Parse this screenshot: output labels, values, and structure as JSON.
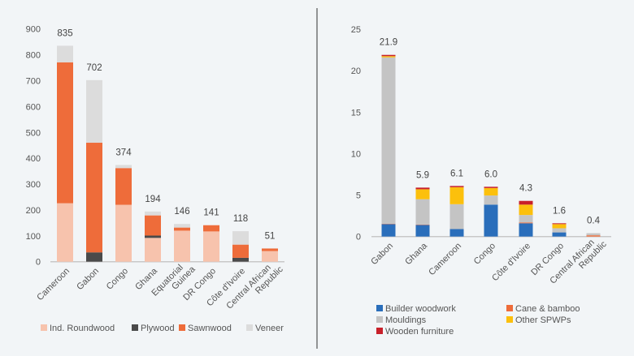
{
  "chart_data": [
    {
      "type": "bar",
      "stacked": true,
      "categories": [
        "Cameroon",
        "Gabon",
        "Congo",
        "Ghana",
        "Equatorial Guinea",
        "DR Congo",
        "Côte d'Ivoire",
        "Central African Republic"
      ],
      "category_lines": [
        [
          "Cameroon"
        ],
        [
          "Gabon"
        ],
        [
          "Congo"
        ],
        [
          "Ghana"
        ],
        [
          "Equatorial",
          "Guinea"
        ],
        [
          "DR Congo"
        ],
        [
          "Côte d'Ivoire"
        ],
        [
          "Central African",
          "Republic"
        ]
      ],
      "series": [
        {
          "name": "Ind. Roundwood",
          "color": "#f7c3ad",
          "values": [
            226,
            0,
            220,
            92,
            120,
            117,
            0,
            41
          ]
        },
        {
          "name": "Plywood",
          "color": "#4a4a4a",
          "values": [
            0,
            36,
            0,
            9,
            0,
            0,
            15,
            0
          ]
        },
        {
          "name": "Sawnwood",
          "color": "#ee6c3a",
          "values": [
            545,
            424,
            142,
            78,
            12,
            24,
            51,
            10
          ]
        },
        {
          "name": "Veneer",
          "color": "#dcdcdc",
          "values": [
            64,
            242,
            12,
            15,
            14,
            0,
            52,
            0
          ]
        }
      ],
      "totals": [
        "835",
        "702",
        "374",
        "194",
        "146",
        "141",
        "118",
        "51"
      ],
      "yticks": [
        "0",
        "100",
        "200",
        "300",
        "400",
        "500",
        "600",
        "700",
        "800",
        "900"
      ],
      "ylim": [
        0,
        900
      ],
      "grid": false,
      "legend": "bottom"
    },
    {
      "type": "bar",
      "stacked": true,
      "categories": [
        "Gabon",
        "Ghana",
        "Cameroon",
        "Congo",
        "Côte d'Ivoire",
        "DR Congo",
        "Central African Republic"
      ],
      "category_lines": [
        [
          "Gabon"
        ],
        [
          "Ghana"
        ],
        [
          "Cameroon"
        ],
        [
          "Congo"
        ],
        [
          "Côte d'Ivoire"
        ],
        [
          "DR Congo"
        ],
        [
          "Central African",
          "Republic"
        ]
      ],
      "series": [
        {
          "name": "Builder woodwork",
          "color": "#2a6ebb",
          "values": [
            1.5,
            1.4,
            0.9,
            3.85,
            1.6,
            0.5,
            0
          ]
        },
        {
          "name": "Cane & bamboo",
          "color": "#ee6c3a",
          "values": [
            0.05,
            0.05,
            0,
            0,
            0.1,
            0,
            0.15
          ]
        },
        {
          "name": "Mouldings",
          "color": "#c4c4c4",
          "values": [
            20.05,
            3.05,
            3.0,
            1.1,
            0.9,
            0.5,
            0.25
          ]
        },
        {
          "name": "Other SPWPs",
          "color": "#fcc00c",
          "values": [
            0.15,
            1.2,
            2.05,
            0.9,
            1.25,
            0.5,
            0
          ]
        },
        {
          "name": "Wooden furniture",
          "color": "#c8202a",
          "values": [
            0.15,
            0.2,
            0.15,
            0.15,
            0.45,
            0.1,
            0
          ]
        }
      ],
      "totals": [
        "21.9",
        "5.9",
        "6.1",
        "6.0",
        "4.3",
        "1.6",
        "0.4"
      ],
      "yticks": [
        "0",
        "5",
        "10",
        "15",
        "20",
        "25"
      ],
      "ylim": [
        0,
        25
      ],
      "grid": false,
      "legend": "bottom"
    }
  ]
}
